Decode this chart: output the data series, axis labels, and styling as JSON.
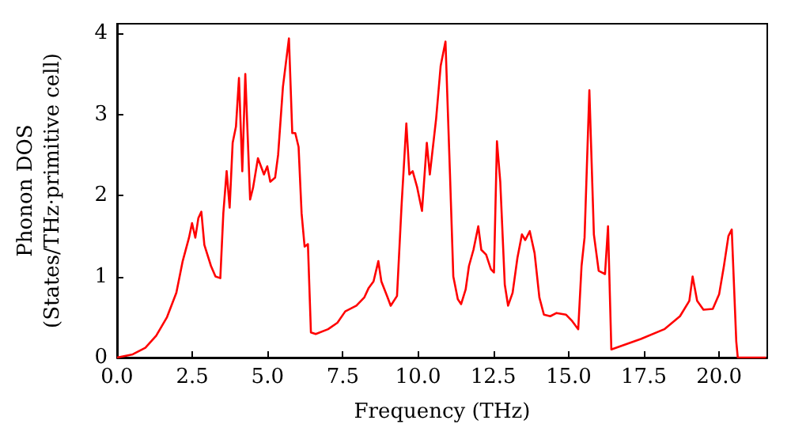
{
  "chart_data": {
    "type": "line",
    "xlabel": "Frequency (THz)",
    "ylabel": "Phonon DOS\n(States/THz·primitive cell)",
    "xlim": [
      0,
      21.6
    ],
    "ylim": [
      0,
      4.12
    ],
    "xticks": [
      {
        "value": 0,
        "label": "0.0"
      },
      {
        "value": 2.5,
        "label": "2.5"
      },
      {
        "value": 5,
        "label": "5.0"
      },
      {
        "value": 7.5,
        "label": "7.5"
      },
      {
        "value": 10,
        "label": "10.0"
      },
      {
        "value": 12.5,
        "label": "12.5"
      },
      {
        "value": 15,
        "label": "15.0"
      },
      {
        "value": 17.5,
        "label": "17.5"
      },
      {
        "value": 20,
        "label": "20.0"
      }
    ],
    "yticks": [
      0,
      1,
      2,
      3,
      4
    ],
    "grid": false,
    "marker": "none",
    "line_style": "solid",
    "x": [
      0,
      0.52,
      0.94,
      1.3,
      1.66,
      1.97,
      2.18,
      2.39,
      2.49,
      2.6,
      2.7,
      2.8,
      2.9,
      3.12,
      3.27,
      3.43,
      3.53,
      3.64,
      3.74,
      3.84,
      3.95,
      4.05,
      4.16,
      4.26,
      4.42,
      4.52,
      4.68,
      4.88,
      4.99,
      5.09,
      5.25,
      5.35,
      5.51,
      5.71,
      5.82,
      5.92,
      6.03,
      6.13,
      6.23,
      6.34,
      6.44,
      6.6,
      7.01,
      7.32,
      7.58,
      7.95,
      8.21,
      8.36,
      8.52,
      8.68,
      8.78,
      8.99,
      9.09,
      9.3,
      9.45,
      9.61,
      9.71,
      9.82,
      9.97,
      10.13,
      10.29,
      10.39,
      10.6,
      10.75,
      10.91,
      11.06,
      11.17,
      11.32,
      11.43,
      11.58,
      11.69,
      11.84,
      12.0,
      12.1,
      12.26,
      12.42,
      12.52,
      12.62,
      12.73,
      12.88,
      12.99,
      13.14,
      13.3,
      13.45,
      13.56,
      13.71,
      13.87,
      14.03,
      14.18,
      14.39,
      14.6,
      14.91,
      15.12,
      15.32,
      15.43,
      15.53,
      15.69,
      15.84,
      16.0,
      16.21,
      16.31,
      16.42,
      17.4,
      18.18,
      18.7,
      19.01,
      19.12,
      19.27,
      19.48,
      19.79,
      20.0,
      20.16,
      20.31,
      20.42,
      20.57,
      20.62,
      21.56
    ],
    "series": [
      {
        "color": "#ff0000",
        "values": [
          0,
          0.04,
          0.12,
          0.27,
          0.5,
          0.8,
          1.19,
          1.48,
          1.66,
          1.48,
          1.72,
          1.8,
          1.39,
          1.13,
          1.0,
          0.98,
          1.78,
          2.3,
          1.85,
          2.65,
          2.85,
          3.45,
          2.3,
          3.5,
          1.95,
          2.1,
          2.46,
          2.26,
          2.36,
          2.17,
          2.22,
          2.5,
          3.34,
          3.94,
          2.77,
          2.77,
          2.6,
          1.78,
          1.37,
          1.4,
          0.31,
          0.29,
          0.35,
          0.43,
          0.57,
          0.64,
          0.74,
          0.86,
          0.94,
          1.19,
          0.94,
          0.74,
          0.64,
          0.76,
          1.87,
          2.89,
          2.26,
          2.3,
          2.1,
          1.81,
          2.65,
          2.26,
          2.95,
          3.6,
          3.9,
          2.26,
          1.0,
          0.72,
          0.66,
          0.84,
          1.13,
          1.33,
          1.62,
          1.33,
          1.27,
          1.09,
          1.05,
          2.67,
          2.17,
          0.9,
          0.64,
          0.8,
          1.23,
          1.52,
          1.45,
          1.56,
          1.29,
          0.74,
          0.53,
          0.51,
          0.55,
          0.53,
          0.45,
          0.35,
          1.13,
          1.48,
          3.3,
          1.52,
          1.07,
          1.03,
          1.62,
          0.1,
          0.23,
          0.35,
          0.51,
          0.7,
          1.0,
          0.7,
          0.59,
          0.6,
          0.78,
          1.13,
          1.5,
          1.58,
          0.2,
          0,
          0
        ]
      }
    ]
  }
}
